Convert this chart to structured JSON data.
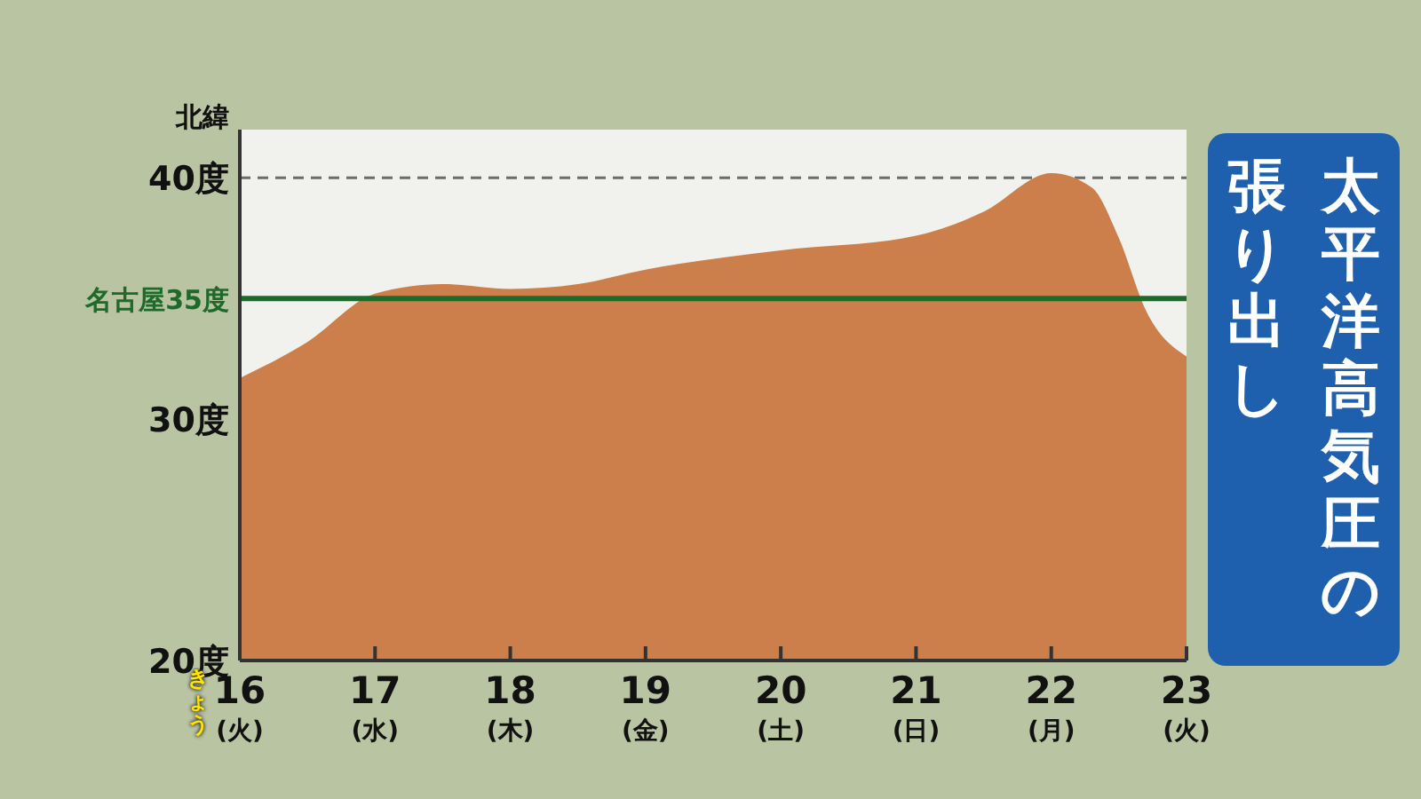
{
  "chart_data": {
    "type": "area",
    "title": "太平洋高気圧の張り出し",
    "ylabel": "北緯",
    "x": [
      16,
      16.5,
      17,
      17.5,
      18,
      18.5,
      19,
      20,
      21,
      21.5,
      22,
      22.3,
      22.5,
      22.7,
      23
    ],
    "series": [
      {
        "color": "#cc7f4a",
        "values": [
          31.7,
          33.2,
          35.2,
          35.6,
          35.4,
          35.6,
          36.2,
          37.0,
          37.6,
          38.6,
          40.2,
          39.6,
          37.5,
          34.5,
          32.6
        ]
      }
    ],
    "xlim": [
      16,
      23
    ],
    "xticks": [
      {
        "value": 16,
        "label": "16\n(火)"
      },
      {
        "value": 17,
        "label": "17\n(水)"
      },
      {
        "value": 18,
        "label": "18\n(木)"
      },
      {
        "value": 19,
        "label": "19\n(金)"
      },
      {
        "value": 20,
        "label": "20\n(土)"
      },
      {
        "value": 21,
        "label": "21\n(日)"
      },
      {
        "value": 22,
        "label": "22\n(月)"
      },
      {
        "value": 23,
        "label": "23\n(火)"
      }
    ],
    "ylim": [
      20,
      42
    ],
    "yticks": [
      {
        "value": 20,
        "label": "20度"
      },
      {
        "value": 30,
        "label": "30度"
      },
      {
        "value": 40,
        "label": "40度"
      }
    ],
    "grid": "y",
    "ref_lines": [
      {
        "axis": "y",
        "value": 35,
        "label": "名古屋35度",
        "color": "#1f6a2a"
      }
    ],
    "annotations": [
      {
        "text": "きょう",
        "x": 16,
        "y": 20
      }
    ]
  }
}
